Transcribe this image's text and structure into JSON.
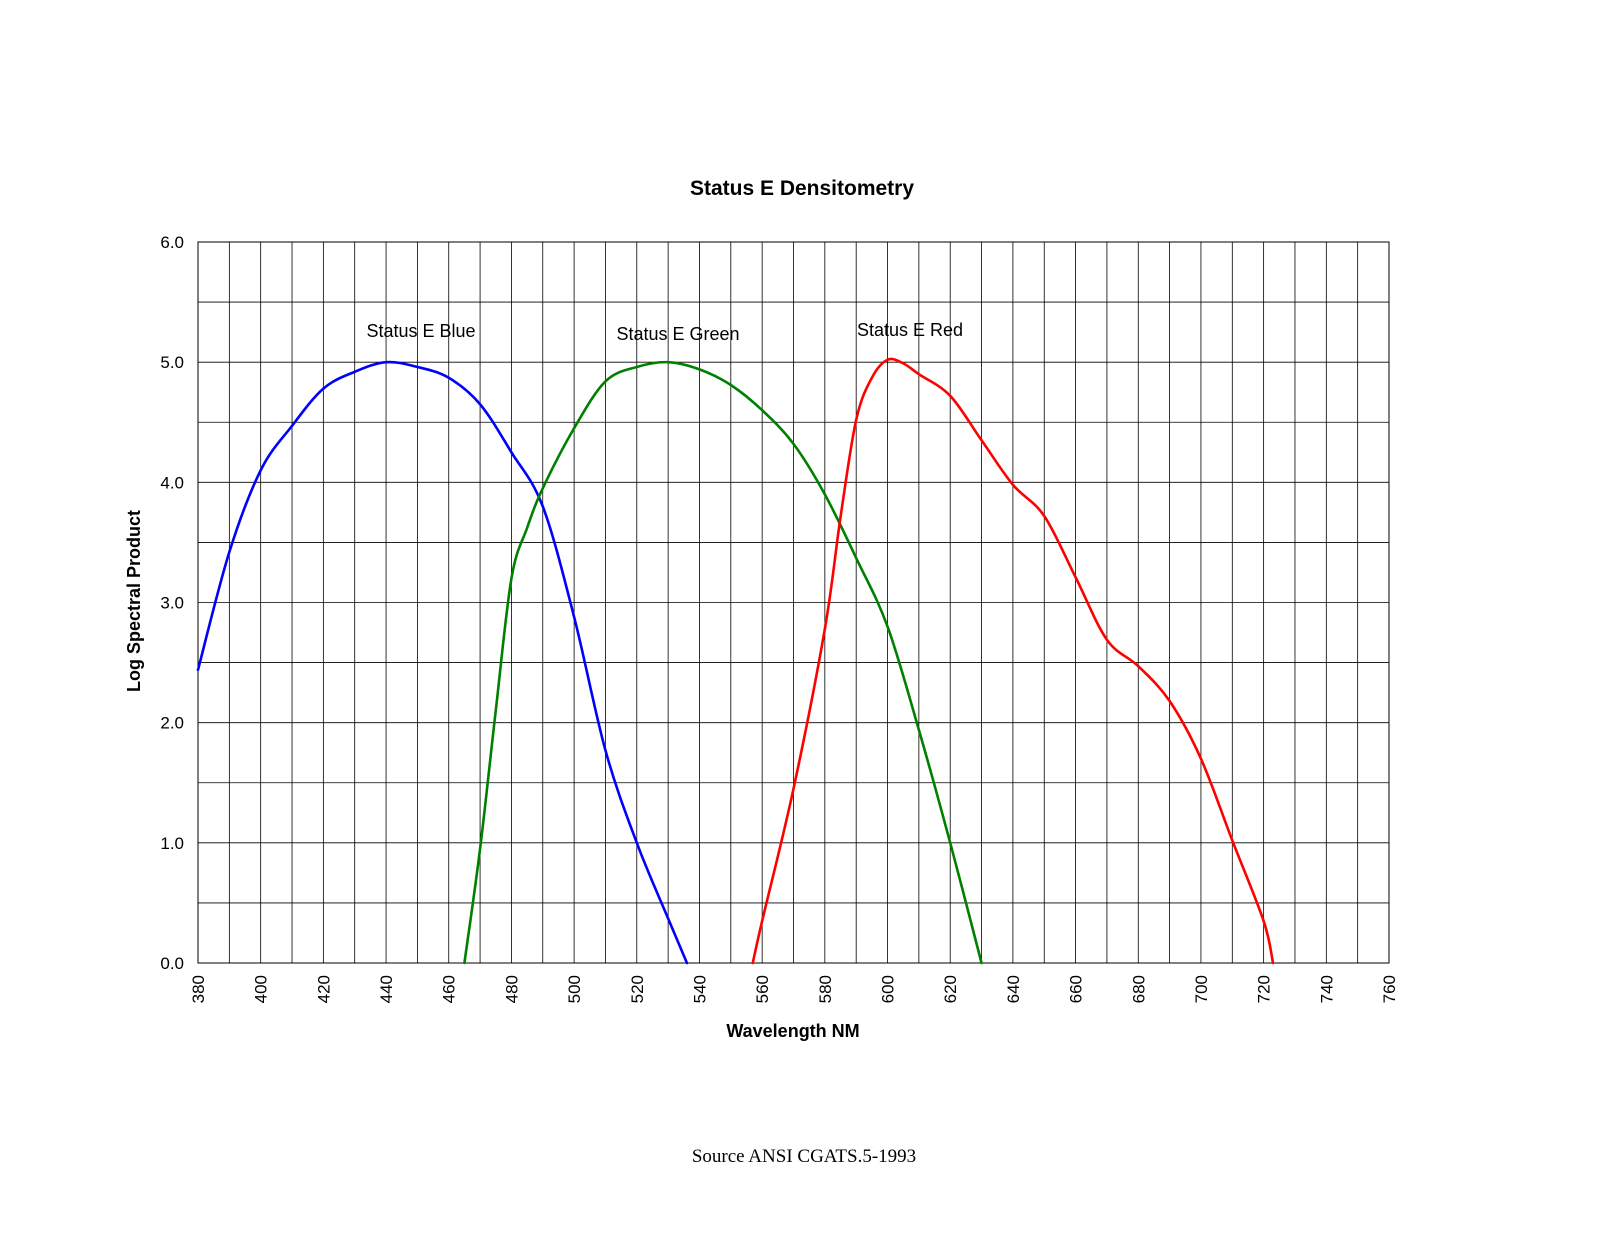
{
  "chart_data": {
    "type": "line",
    "title": "Status E Densitometry",
    "xlabel": "Wavelength NM",
    "ylabel": "Log Spectral Product",
    "xlim": [
      380,
      760
    ],
    "ylim": [
      0,
      6
    ],
    "x_ticks": [
      "380",
      "400",
      "420",
      "440",
      "460",
      "480",
      "500",
      "520",
      "540",
      "560",
      "580",
      "600",
      "620",
      "640",
      "660",
      "680",
      "700",
      "720",
      "740",
      "760"
    ],
    "y_ticks": [
      "0.0",
      "1.0",
      "2.0",
      "3.0",
      "4.0",
      "5.0",
      "6.0"
    ],
    "grid": true,
    "legend": "none",
    "series": [
      {
        "name": "Status E Blue",
        "color": "#0000ff",
        "x": [
          380,
          390,
          400,
          410,
          420,
          430,
          440,
          450,
          460,
          470,
          480,
          490,
          500,
          510,
          520,
          530,
          536
        ],
        "y": [
          2.44,
          3.42,
          4.1,
          4.47,
          4.78,
          4.92,
          5.0,
          4.96,
          4.87,
          4.65,
          4.25,
          3.8,
          2.88,
          1.77,
          1.0,
          0.37,
          0.0
        ]
      },
      {
        "name": "Status E Green",
        "color": "#008000",
        "x": [
          465,
          470,
          475,
          480,
          485,
          490,
          500,
          510,
          520,
          530,
          540,
          550,
          560,
          570,
          580,
          590,
          600,
          610,
          620,
          630
        ],
        "y": [
          0.0,
          0.95,
          2.1,
          3.2,
          3.62,
          3.95,
          4.45,
          4.84,
          4.96,
          5.0,
          4.94,
          4.81,
          4.6,
          4.32,
          3.9,
          3.37,
          2.8,
          1.94,
          1.0,
          0.0
        ]
      },
      {
        "name": "Status E Red",
        "color": "#ff0000",
        "x": [
          557,
          560,
          570,
          580,
          585,
          590,
          595,
          600,
          605,
          610,
          620,
          630,
          640,
          650,
          660,
          670,
          680,
          690,
          700,
          710,
          720,
          723
        ],
        "y": [
          0.0,
          0.35,
          1.45,
          2.78,
          3.71,
          4.52,
          4.87,
          5.02,
          4.99,
          4.9,
          4.72,
          4.35,
          3.98,
          3.72,
          3.21,
          2.69,
          2.47,
          2.18,
          1.7,
          1.02,
          0.35,
          0.0
        ]
      }
    ]
  },
  "source_note": "Source ANSI CGATS.5-1993"
}
